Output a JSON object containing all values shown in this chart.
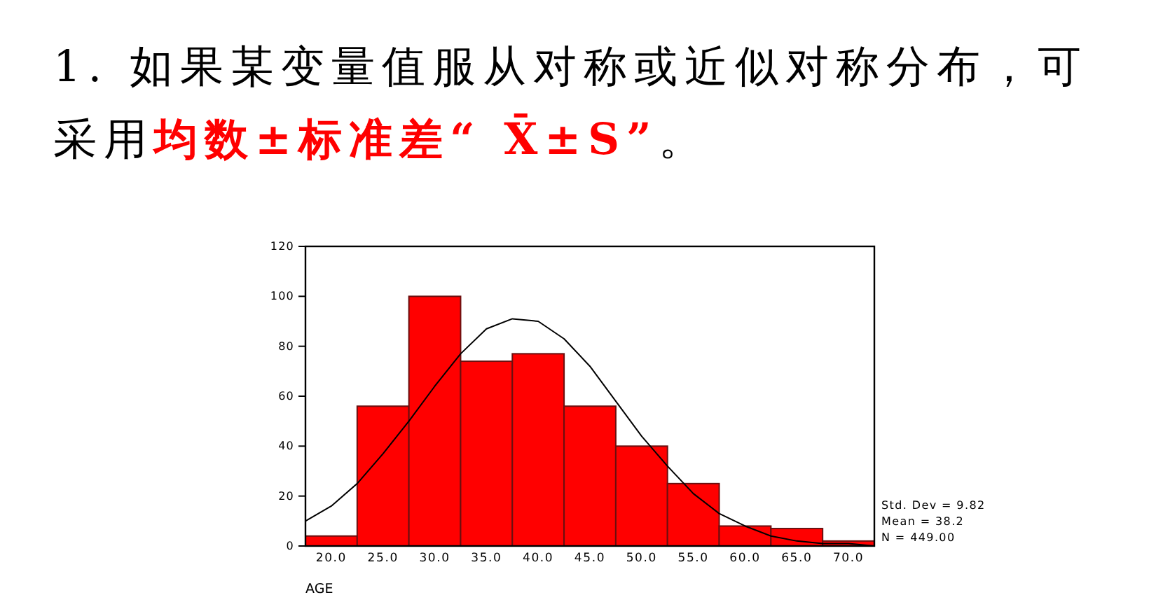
{
  "chart_data": {
    "type": "histogram",
    "title": "1. 如果某变量值服从对称或近似对称分布，可采用**均数±标准差“ X̄±S”**。",
    "xlabel": "AGE",
    "bins": [
      17.5,
      22.5,
      27.5,
      32.5,
      37.5,
      42.5,
      47.5,
      52.5,
      57.5,
      62.5,
      67.5,
      72.5
    ],
    "series": [
      {
        "color": "#ff0000",
        "values": [
          4,
          56,
          100,
          74,
          77,
          56,
          40,
          25,
          8,
          7,
          2
        ]
      },
      {
        "type": "line",
        "color": "#000000",
        "x": [
          17.5,
          20,
          22.5,
          25,
          27.5,
          30,
          32.5,
          35,
          37.5,
          40,
          42.5,
          45,
          47.5,
          50,
          52.5,
          55,
          57.5,
          60,
          62.5,
          65,
          67.5,
          70,
          72.5
        ],
        "values": [
          10,
          16,
          25,
          37,
          50,
          64,
          77,
          87,
          91,
          90,
          83,
          72,
          58,
          44,
          32,
          21,
          13,
          8,
          4,
          2,
          1,
          1,
          0
        ]
      }
    ],
    "xlim": [
      17.5,
      72.5
    ],
    "ylim": [
      0,
      120
    ],
    "xticks": [
      {
        "value": 20,
        "label": "20.0"
      },
      {
        "value": 25,
        "label": "25.0"
      },
      {
        "value": 30,
        "label": "30.0"
      },
      {
        "value": 35,
        "label": "35.0"
      },
      {
        "value": 40,
        "label": "40.0"
      },
      {
        "value": 45,
        "label": "45.0"
      },
      {
        "value": 50,
        "label": "50.0"
      },
      {
        "value": 55,
        "label": "55.0"
      },
      {
        "value": 60,
        "label": "60.0"
      },
      {
        "value": 65,
        "label": "65.0"
      },
      {
        "value": 70,
        "label": "70.0"
      }
    ],
    "yticks": [
      0,
      20,
      40,
      60,
      80,
      100,
      120
    ],
    "annotations": [
      "Std. Dev = 9.82",
      "Mean = 38.2",
      "N = 449.00"
    ]
  }
}
